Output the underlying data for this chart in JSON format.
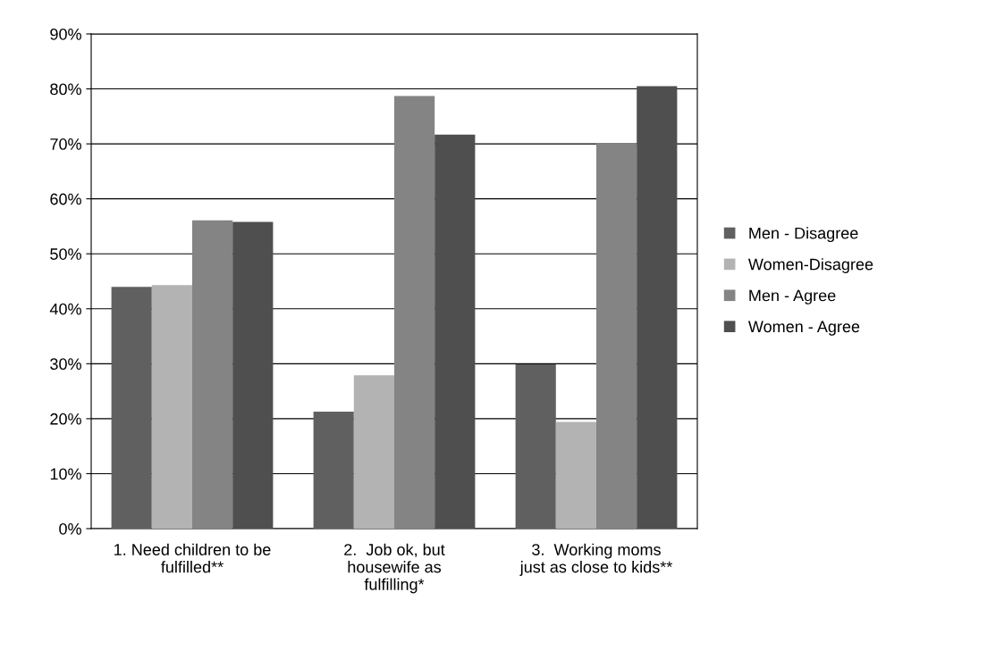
{
  "chart_data": {
    "type": "bar",
    "categories": [
      "1. Need children to be\nfulfilled**",
      "2.  Job ok, but\nhousewife as\nfulfilling*",
      "3.  Working moms\njust as close to kids**"
    ],
    "series": [
      {
        "name": "Men - Disagree",
        "color": "#606060",
        "values": [
          0.44,
          0.213,
          0.299
        ]
      },
      {
        "name": "Women-Disagree",
        "color": "#b3b3b3",
        "values": [
          0.443,
          0.279,
          0.194
        ]
      },
      {
        "name": "Men - Agree",
        "color": "#848484",
        "values": [
          0.561,
          0.787,
          0.701
        ]
      },
      {
        "name": "Women - Agree",
        "color": "#4f4f4f",
        "values": [
          0.558,
          0.717,
          0.805
        ]
      }
    ],
    "ylim": [
      0,
      0.9
    ],
    "yticks": [
      {
        "value": 0,
        "label": "0%"
      },
      {
        "value": 0.1,
        "label": "10%"
      },
      {
        "value": 0.2,
        "label": "20%"
      },
      {
        "value": 0.3,
        "label": "30%"
      },
      {
        "value": 0.4,
        "label": "40%"
      },
      {
        "value": 0.5,
        "label": "50%"
      },
      {
        "value": 0.6,
        "label": "60%"
      },
      {
        "value": 0.7,
        "label": "70%"
      },
      {
        "value": 0.8,
        "label": "80%"
      },
      {
        "value": 0.9,
        "label": "90%"
      }
    ],
    "grid": "y",
    "legend": "right"
  }
}
